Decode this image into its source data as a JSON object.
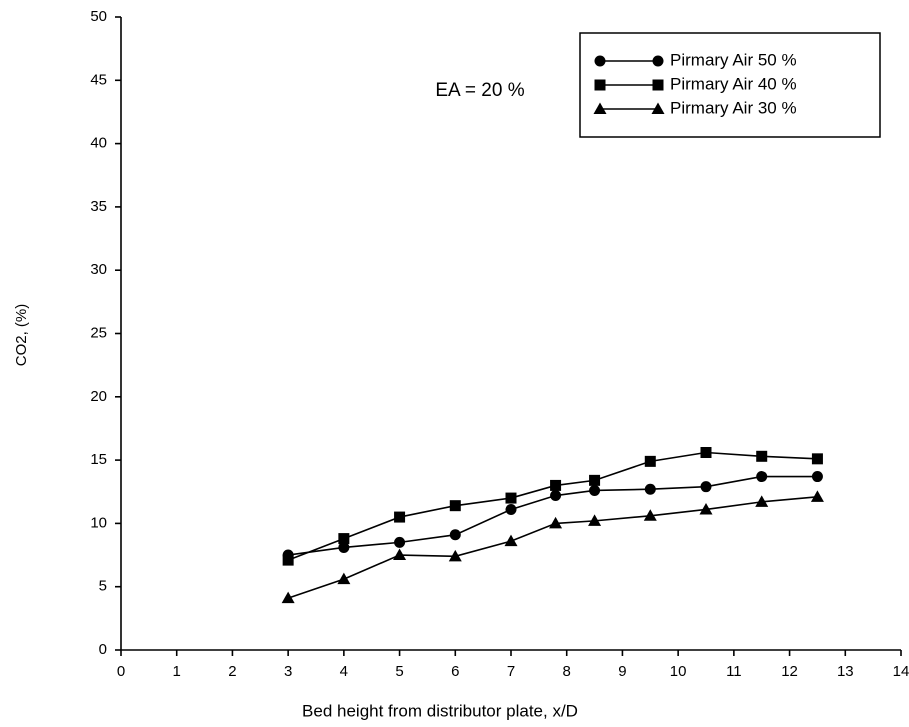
{
  "chart_data": {
    "type": "line",
    "annotation": "EA = 20 %",
    "x_label": "Bed height from distributor plate, x/D",
    "y_label": "CO2, (%)",
    "x": [
      3,
      4,
      5,
      6,
      7,
      7.8,
      8.5,
      9.5,
      10.5,
      11.5,
      12.5
    ],
    "series": [
      {
        "name": "Pirmary Air 50 %",
        "color": "#000000",
        "marker": "circle",
        "values": [
          7.5,
          8.1,
          8.5,
          9.1,
          11.1,
          12.2,
          12.6,
          12.7,
          12.9,
          13.7,
          13.7
        ]
      },
      {
        "name": "Pirmary Air 40 %",
        "color": "#000000",
        "marker": "square",
        "values": [
          7.1,
          8.8,
          10.5,
          11.4,
          12.0,
          13.0,
          13.4,
          14.9,
          15.6,
          15.3,
          15.1
        ]
      },
      {
        "name": "Pirmary Air 30 %",
        "color": "#000000",
        "marker": "triangle",
        "values": [
          4.1,
          5.6,
          7.5,
          7.4,
          8.6,
          10.0,
          10.2,
          10.6,
          11.1,
          11.7,
          12.1
        ]
      }
    ],
    "xlim": [
      0,
      14
    ],
    "xticks": [
      0,
      1,
      2,
      3,
      4,
      5,
      6,
      7,
      8,
      9,
      10,
      11,
      12,
      13,
      14
    ],
    "ylim": [
      0,
      50
    ],
    "yticks": [
      0,
      5,
      10,
      15,
      20,
      25,
      30,
      35,
      40,
      45,
      50
    ],
    "grid": false,
    "legend_position": "upper right"
  }
}
